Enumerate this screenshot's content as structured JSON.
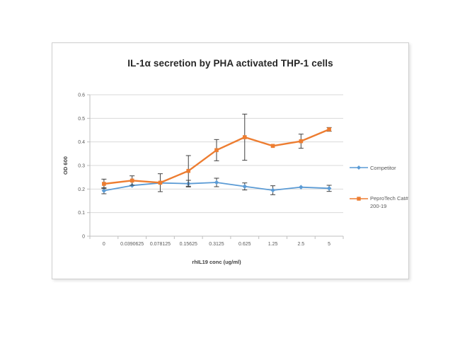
{
  "window": {
    "background": "#ffffff"
  },
  "style": {
    "grid_color": "#d9d9d9",
    "axis_color": "#bfbfbf",
    "error_bar_color": "#404040",
    "tick_text_color": "#595959",
    "axis_title_color": "#404040",
    "title_color": "#262626",
    "frame_border_color": "#cfcfcf"
  },
  "chart_data": {
    "type": "line",
    "title": "IL-1α secretion by PHA activated THP-1 cells",
    "xlabel": "rhIL19 conc (ug/ml)",
    "ylabel": "OD 600",
    "ylim": [
      0,
      0.6
    ],
    "y_ticks": [
      0,
      0.1,
      0.2,
      0.3,
      0.4,
      0.5,
      0.6
    ],
    "y_tick_labels": [
      "0",
      "0.1",
      "0.2",
      "0.3",
      "0.4",
      "0.5",
      "0.6"
    ],
    "categories": [
      "0",
      "0.0390625",
      "0.078125",
      "0.15625",
      "0.3125",
      "0.625",
      "1.25",
      "2.5",
      "5"
    ],
    "grid": true,
    "legend_position": "right",
    "error_bars": true,
    "series": [
      {
        "name": "Competitor",
        "color": "#5B9BD5",
        "marker": "diamond",
        "line_width": 1.8,
        "values": [
          0.193,
          0.215,
          0.226,
          0.223,
          0.228,
          0.211,
          0.195,
          0.208,
          0.203
        ],
        "errors": [
          0.013,
          0.005,
          0.005,
          0.014,
          0.018,
          0.015,
          0.019,
          0.005,
          0.013
        ]
      },
      {
        "name": "PeproTech Cat# 200-19",
        "color": "#ED7D31",
        "marker": "square",
        "line_width": 2.4,
        "values": [
          0.222,
          0.236,
          0.227,
          0.277,
          0.365,
          0.42,
          0.383,
          0.403,
          0.453
        ],
        "errors": [
          0.02,
          0.02,
          0.038,
          0.065,
          0.045,
          0.098,
          0.004,
          0.03,
          0.008
        ]
      }
    ]
  }
}
